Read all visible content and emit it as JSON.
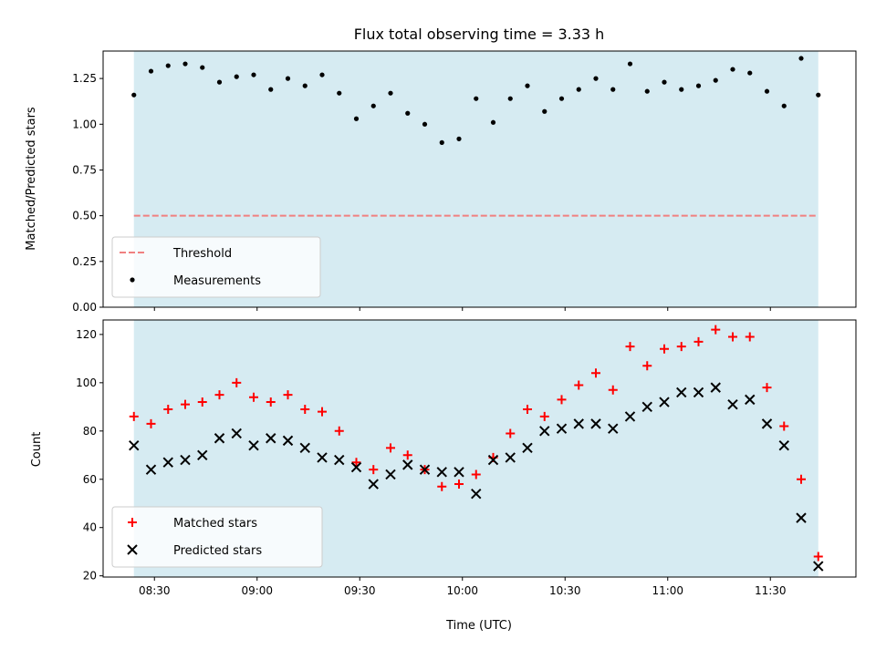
{
  "chart_data": [
    {
      "type": "scatter",
      "title": "Flux total observing time = 3.33 h",
      "xlabel": "",
      "ylabel": "Matched/Predicted stars",
      "ylim": [
        0,
        1.4
      ],
      "yticks": [
        "0.00",
        "0.25",
        "0.50",
        "0.75",
        "1.00",
        "1.25"
      ],
      "observing_window": [
        "08:24",
        "11:44"
      ],
      "threshold": {
        "name": "Threshold",
        "value": 0.5,
        "color": "#f08080",
        "style": "dashed"
      },
      "series": [
        {
          "name": "Measurements",
          "marker": "dot",
          "color": "#000000",
          "times": [
            "08:24",
            "08:29",
            "08:34",
            "08:39",
            "08:44",
            "08:49",
            "08:54",
            "08:59",
            "09:04",
            "09:09",
            "09:14",
            "09:19",
            "09:24",
            "09:29",
            "09:34",
            "09:39",
            "09:44",
            "09:49",
            "09:54",
            "09:59",
            "10:04",
            "10:09",
            "10:14",
            "10:19",
            "10:24",
            "10:29",
            "10:34",
            "10:39",
            "10:44",
            "10:49",
            "10:54",
            "10:59",
            "11:04",
            "11:09",
            "11:14",
            "11:19",
            "11:24",
            "11:29",
            "11:34",
            "11:39",
            "11:44"
          ],
          "values": [
            1.16,
            1.29,
            1.32,
            1.33,
            1.31,
            1.23,
            1.26,
            1.27,
            1.19,
            1.25,
            1.21,
            1.27,
            1.17,
            1.03,
            1.1,
            1.17,
            1.06,
            1.0,
            0.9,
            0.92,
            1.14,
            1.01,
            1.14,
            1.21,
            1.07,
            1.14,
            1.19,
            1.25,
            1.19,
            1.33,
            1.18,
            1.23,
            1.19,
            1.21,
            1.24,
            1.3,
            1.28,
            1.18,
            1.1,
            1.36,
            1.16
          ]
        }
      ],
      "legend": "lower-left",
      "shade_color": "#add8e6"
    },
    {
      "type": "scatter",
      "title": "",
      "xlabel": "Time (UTC)",
      "ylabel": "Count",
      "ylim": [
        19.5,
        126
      ],
      "yticks": [
        "20",
        "40",
        "60",
        "80",
        "100",
        "120"
      ],
      "xticks": [
        "08:30",
        "09:00",
        "09:30",
        "10:00",
        "10:30",
        "11:00",
        "11:30"
      ],
      "xlim": [
        "08:15",
        "11:55"
      ],
      "series": [
        {
          "name": "Matched stars",
          "marker": "plus",
          "color": "#ff0000",
          "times": [
            "08:24",
            "08:29",
            "08:34",
            "08:39",
            "08:44",
            "08:49",
            "08:54",
            "08:59",
            "09:04",
            "09:09",
            "09:14",
            "09:19",
            "09:24",
            "09:29",
            "09:34",
            "09:39",
            "09:44",
            "09:49",
            "09:54",
            "09:59",
            "10:04",
            "10:09",
            "10:14",
            "10:19",
            "10:24",
            "10:29",
            "10:34",
            "10:39",
            "10:44",
            "10:49",
            "10:54",
            "10:59",
            "11:04",
            "11:09",
            "11:14",
            "11:19",
            "11:24",
            "11:29",
            "11:34",
            "11:39",
            "11:44"
          ],
          "values": [
            86,
            83,
            89,
            91,
            92,
            95,
            100,
            94,
            92,
            95,
            89,
            88,
            80,
            67,
            64,
            73,
            70,
            64,
            57,
            58,
            62,
            69,
            79,
            89,
            86,
            93,
            99,
            104,
            97,
            115,
            107,
            114,
            115,
            117,
            122,
            119,
            119,
            98,
            82,
            60,
            28
          ]
        },
        {
          "name": "Predicted stars",
          "marker": "x",
          "color": "#000000",
          "times": [
            "08:24",
            "08:29",
            "08:34",
            "08:39",
            "08:44",
            "08:49",
            "08:54",
            "08:59",
            "09:04",
            "09:09",
            "09:14",
            "09:19",
            "09:24",
            "09:29",
            "09:34",
            "09:39",
            "09:44",
            "09:49",
            "09:54",
            "09:59",
            "10:04",
            "10:09",
            "10:14",
            "10:19",
            "10:24",
            "10:29",
            "10:34",
            "10:39",
            "10:44",
            "10:49",
            "10:54",
            "10:59",
            "11:04",
            "11:09",
            "11:14",
            "11:19",
            "11:24",
            "11:29",
            "11:34",
            "11:39",
            "11:44"
          ],
          "values": [
            74,
            64,
            67,
            68,
            70,
            77,
            79,
            74,
            77,
            76,
            73,
            69,
            68,
            65,
            58,
            62,
            66,
            64,
            63,
            63,
            54,
            68,
            69,
            73,
            80,
            81,
            83,
            83,
            81,
            86,
            90,
            92,
            96,
            96,
            98,
            91,
            93,
            83,
            74,
            44,
            24
          ]
        }
      ],
      "legend": "lower-left",
      "shade_color": "#add8e6"
    }
  ]
}
